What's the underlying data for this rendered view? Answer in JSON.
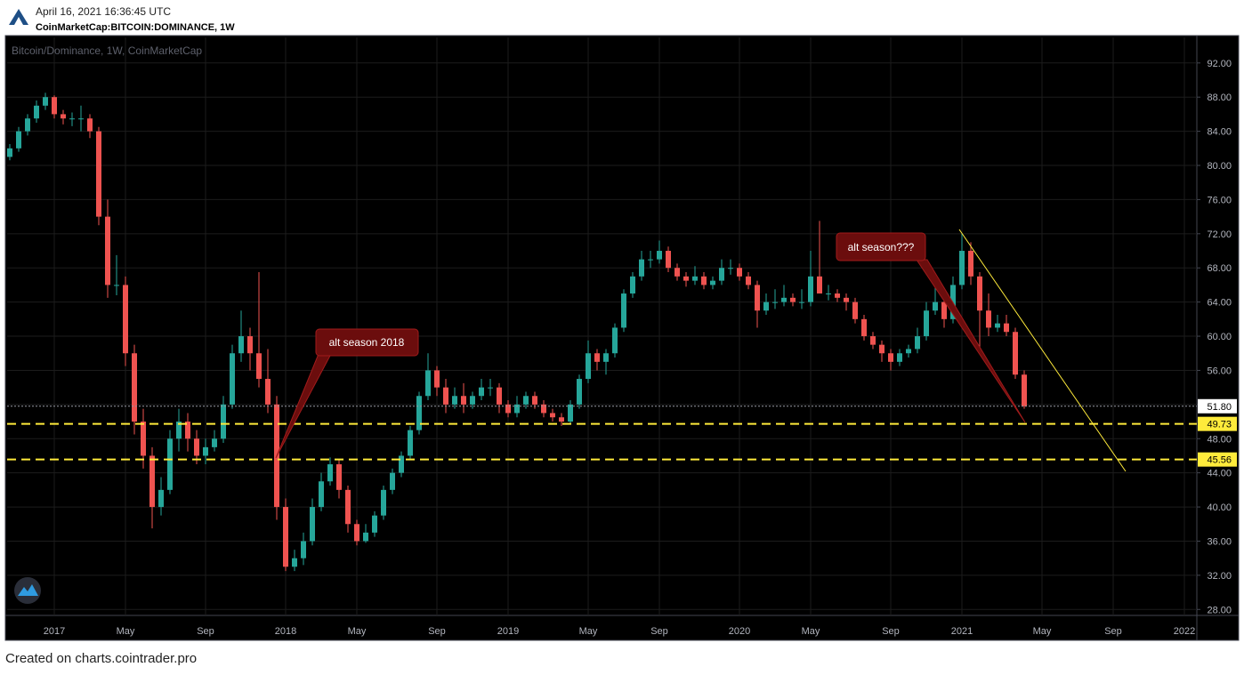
{
  "header": {
    "timestamp": "April 16, 2021 16:36:45 UTC",
    "symbol": "CoinMarketCap:BITCOIN:DOMINANCE, 1W"
  },
  "chart_data": {
    "type": "candlestick",
    "title": "Bitcoin/Dominance, 1W, CoinMarketCap",
    "up_color": "#26a69a",
    "down_color": "#ef5350",
    "grid": true,
    "categories": [
      null,
      null,
      null,
      null,
      null,
      "2017",
      null,
      null,
      null,
      null,
      null,
      null,
      null,
      "May",
      null,
      null,
      null,
      null,
      null,
      null,
      null,
      null,
      "Sep",
      null,
      null,
      null,
      null,
      null,
      null,
      null,
      null,
      "2018",
      null,
      null,
      null,
      null,
      null,
      null,
      null,
      "May",
      null,
      null,
      null,
      null,
      null,
      null,
      null,
      null,
      "Sep",
      null,
      null,
      null,
      null,
      null,
      null,
      null,
      "2019",
      null,
      null,
      null,
      null,
      null,
      null,
      null,
      null,
      "May",
      null,
      null,
      null,
      null,
      null,
      null,
      null,
      "Sep",
      null,
      null,
      null,
      null,
      null,
      null,
      null,
      null,
      "2020",
      null,
      null,
      null,
      null,
      null,
      null,
      null,
      "May",
      null,
      null,
      null,
      null,
      null,
      null,
      null,
      null,
      "Sep",
      null,
      null,
      null,
      null,
      null,
      null,
      null,
      "2021",
      null,
      null,
      null,
      null,
      null,
      null,
      null,
      null,
      "May",
      null,
      null,
      null,
      null,
      null,
      null,
      null,
      "Sep",
      null,
      null,
      null,
      null,
      null,
      null,
      null,
      "2022",
      null
    ],
    "candles": [
      [
        81,
        82.5,
        80.6,
        82
      ],
      [
        82,
        84.5,
        81.6,
        84
      ],
      [
        84,
        86,
        83.5,
        85.5
      ],
      [
        85.5,
        87.6,
        85,
        87
      ],
      [
        87,
        88.5,
        86.5,
        88
      ],
      [
        88,
        88.2,
        85.5,
        86
      ],
      [
        86,
        86.5,
        84.8,
        85.5
      ],
      [
        85.5,
        86.2,
        84.6,
        85.5
      ],
      [
        85.5,
        87,
        84,
        85.5
      ],
      [
        85.5,
        86,
        83.2,
        84
      ],
      [
        84,
        84.5,
        73,
        74
      ],
      [
        74,
        76,
        64.5,
        66
      ],
      [
        66,
        69.5,
        64.8,
        66
      ],
      [
        66,
        67,
        56.5,
        58
      ],
      [
        58,
        59,
        48.5,
        50
      ],
      [
        50,
        51.5,
        44.5,
        46
      ],
      [
        46,
        47,
        37.5,
        40
      ],
      [
        40,
        43.5,
        39,
        42
      ],
      [
        42,
        49,
        41.5,
        48
      ],
      [
        48,
        51.5,
        46.5,
        50
      ],
      [
        50,
        51,
        46.5,
        48
      ],
      [
        48,
        49,
        45,
        46
      ],
      [
        46,
        48,
        45,
        47
      ],
      [
        47,
        49,
        46.5,
        48
      ],
      [
        48,
        53,
        47.5,
        52
      ],
      [
        52,
        59,
        51.5,
        58
      ],
      [
        58,
        63,
        57,
        60
      ],
      [
        60,
        61,
        56,
        58
      ],
      [
        58,
        67.5,
        54,
        55
      ],
      [
        55,
        58.5,
        51,
        52
      ],
      [
        52,
        53,
        38.5,
        40
      ],
      [
        40,
        41,
        32.5,
        33
      ],
      [
        33,
        35,
        32.5,
        34
      ],
      [
        34,
        37,
        33.2,
        36
      ],
      [
        36,
        41,
        35.5,
        40
      ],
      [
        40,
        44,
        39.5,
        43
      ],
      [
        43,
        45.8,
        42.5,
        45
      ],
      [
        45,
        45.5,
        41,
        42
      ],
      [
        42,
        42.5,
        37,
        38
      ],
      [
        38,
        38.5,
        35.5,
        36
      ],
      [
        36,
        38,
        35.8,
        37
      ],
      [
        37,
        39.5,
        36.5,
        39
      ],
      [
        39,
        42.5,
        38.5,
        42
      ],
      [
        42,
        44.5,
        41.5,
        44
      ],
      [
        44,
        46.5,
        43.5,
        46
      ],
      [
        46,
        49.5,
        45.5,
        49
      ],
      [
        49,
        53.5,
        48.5,
        53
      ],
      [
        53,
        58,
        52.5,
        56
      ],
      [
        56,
        56.5,
        53,
        54
      ],
      [
        54,
        55,
        51,
        52
      ],
      [
        52,
        54,
        51.5,
        53
      ],
      [
        53,
        54.5,
        51,
        52
      ],
      [
        52,
        53.5,
        51.5,
        53
      ],
      [
        53,
        55,
        52.5,
        54
      ],
      [
        54,
        55,
        53,
        54
      ],
      [
        54,
        54.5,
        51,
        52
      ],
      [
        52,
        52.5,
        50.5,
        51
      ],
      [
        51,
        53,
        50.5,
        52
      ],
      [
        52,
        53.5,
        51.5,
        53
      ],
      [
        53,
        53.5,
        51.5,
        52
      ],
      [
        52,
        52.5,
        50.5,
        51
      ],
      [
        51,
        51.5,
        50,
        50.5
      ],
      [
        50.5,
        51,
        49.5,
        50
      ],
      [
        50,
        52.5,
        49.8,
        52
      ],
      [
        52,
        55.5,
        51.5,
        55
      ],
      [
        55,
        59.5,
        54.5,
        58
      ],
      [
        58,
        58.5,
        56,
        57
      ],
      [
        57,
        58.5,
        55.5,
        58
      ],
      [
        58,
        61.5,
        57.5,
        61
      ],
      [
        61,
        65.5,
        60.5,
        65
      ],
      [
        65,
        67.5,
        64.5,
        67
      ],
      [
        67,
        70,
        66.5,
        69
      ],
      [
        69,
        70,
        68,
        69
      ],
      [
        69,
        71.2,
        68.5,
        70
      ],
      [
        70,
        70.5,
        67.5,
        68
      ],
      [
        68,
        68.5,
        66.5,
        67
      ],
      [
        67,
        67.5,
        65.8,
        66.5
      ],
      [
        66.5,
        68.2,
        66,
        67
      ],
      [
        67,
        67.5,
        65.5,
        66
      ],
      [
        66,
        67,
        65.5,
        66.5
      ],
      [
        66.5,
        69,
        66,
        68
      ],
      [
        68,
        69,
        67.2,
        68
      ],
      [
        68,
        68.5,
        66.5,
        67
      ],
      [
        67,
        67.5,
        65.5,
        66
      ],
      [
        66,
        66.5,
        61,
        63
      ],
      [
        63,
        65,
        62.5,
        64
      ],
      [
        64,
        65.5,
        63.2,
        64
      ],
      [
        64,
        66,
        63.5,
        64.5
      ],
      [
        64.5,
        65,
        63.5,
        64
      ],
      [
        64,
        65.5,
        63.2,
        64
      ],
      [
        64,
        70,
        63.5,
        67
      ],
      [
        67,
        73.5,
        65,
        65
      ],
      [
        65,
        66,
        64.2,
        65
      ],
      [
        65,
        65.5,
        64,
        64.5
      ],
      [
        64.5,
        65,
        63,
        64
      ],
      [
        64,
        64.5,
        61.5,
        62
      ],
      [
        62,
        62.5,
        59.5,
        60
      ],
      [
        60,
        60.5,
        58.5,
        59
      ],
      [
        59,
        59.5,
        57,
        58
      ],
      [
        58,
        58.5,
        56,
        57
      ],
      [
        57,
        58.5,
        56.5,
        58
      ],
      [
        58,
        59,
        57.5,
        58.5
      ],
      [
        58.5,
        61,
        58,
        60
      ],
      [
        60,
        64,
        59.5,
        63
      ],
      [
        63,
        66,
        62.5,
        64
      ],
      [
        64,
        64.5,
        61,
        62
      ],
      [
        62,
        67,
        61.5,
        66
      ],
      [
        66,
        72,
        65.5,
        70
      ],
      [
        70,
        71,
        66,
        67
      ],
      [
        67,
        67.5,
        58.5,
        63
      ],
      [
        63,
        65,
        60,
        61
      ],
      [
        61,
        62.5,
        60.5,
        61.5
      ],
      [
        61.5,
        62.5,
        60,
        60.5
      ],
      [
        60.5,
        61,
        55,
        55.5
      ],
      [
        55.5,
        56,
        51.5,
        51.8
      ],
      null,
      null,
      null,
      null,
      null,
      null,
      null,
      null,
      null,
      null,
      null,
      null,
      null,
      null,
      null,
      null,
      null,
      null,
      null
    ],
    "ylim": [
      27.3,
      95.0
    ],
    "yticks": [
      {
        "value": 28,
        "label": "28.00"
      },
      {
        "value": 32,
        "label": "32.00"
      },
      {
        "value": 36,
        "label": "36.00"
      },
      {
        "value": 40,
        "label": "40.00"
      },
      {
        "value": 44,
        "label": "44.00"
      },
      {
        "value": 48,
        "label": "48.00"
      },
      {
        "value": 52,
        "label": "52.00"
      },
      {
        "value": 56,
        "label": "56.00"
      },
      {
        "value": 60,
        "label": "60.00"
      },
      {
        "value": 64,
        "label": "64.00"
      },
      {
        "value": 68,
        "label": "68.00"
      },
      {
        "value": 72,
        "label": "72.00"
      },
      {
        "value": 76,
        "label": "76.00"
      },
      {
        "value": 80,
        "label": "80.00"
      },
      {
        "value": 84,
        "label": "84.00"
      },
      {
        "value": 88,
        "label": "88.00"
      },
      {
        "value": 92,
        "label": "92.00"
      }
    ],
    "price_lines": [
      {
        "value": 51.8,
        "label": "51.80",
        "color": "#9598a1",
        "box": "#ffffff",
        "style": "dotted"
      },
      {
        "value": 49.73,
        "label": "49.73",
        "color": "#ffeb3b",
        "box": "#ffeb3b",
        "style": "dashed"
      },
      {
        "value": 45.56,
        "label": "45.56",
        "color": "#ffeb3b",
        "box": "#ffeb3b",
        "style": "dashed"
      }
    ],
    "annotations": [
      {
        "text": "alt season 2018"
      },
      {
        "text": "alt season???"
      }
    ]
  },
  "footer": "Created on charts.cointrader.pro"
}
